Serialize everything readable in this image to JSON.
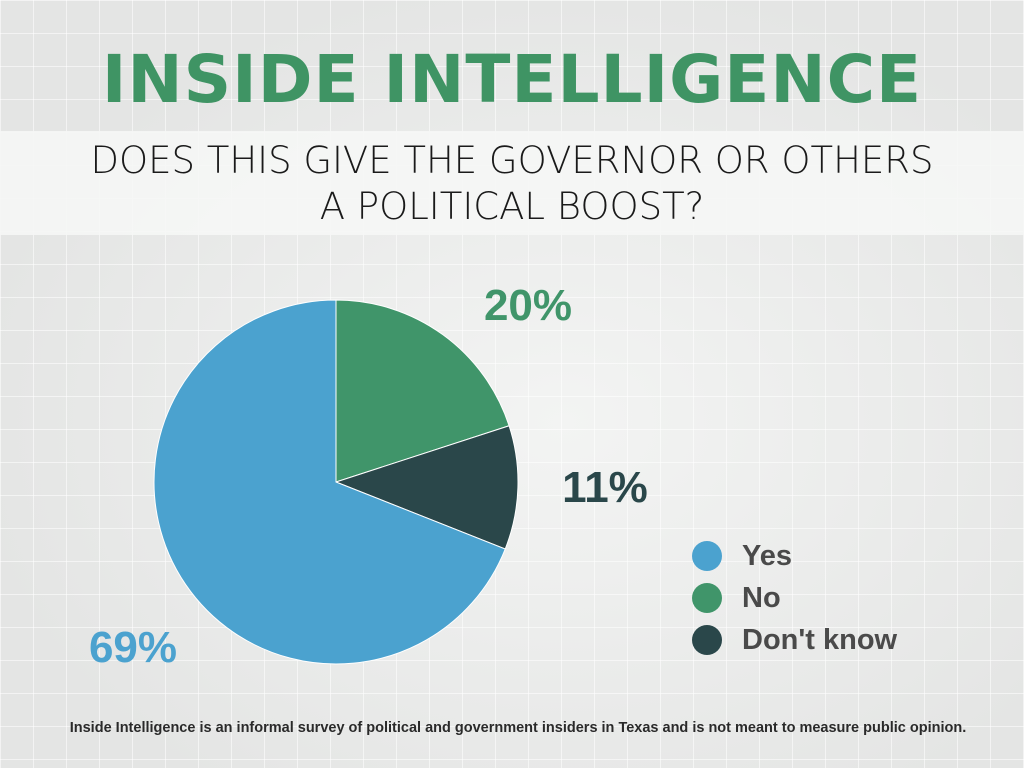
{
  "header": {
    "title": "INSIDE INTELLIGENCE",
    "title_color": "#3f9464"
  },
  "question": {
    "line1": "DOES THIS GIVE THE GOVERNOR OR OTHERS",
    "line2": "A POLITICAL BOOST?"
  },
  "chart_data": {
    "type": "pie",
    "title": "DOES THIS GIVE THE GOVERNOR OR OTHERS A POLITICAL BOOST?",
    "slices": [
      {
        "name": "No",
        "value": 20,
        "label": "20%",
        "color": "#40956a"
      },
      {
        "name": "Don't know",
        "value": 11,
        "label": "11%",
        "color": "#2a474a"
      },
      {
        "name": "Yes",
        "value": 69,
        "label": "69%",
        "color": "#4ba2cf"
      }
    ],
    "legend": [
      "Yes",
      "No",
      "Don't know"
    ],
    "legend_placement": "right"
  },
  "footnote": "Inside Intelligence is an informal survey of political and government insiders in Texas and is not meant to measure public opinion."
}
